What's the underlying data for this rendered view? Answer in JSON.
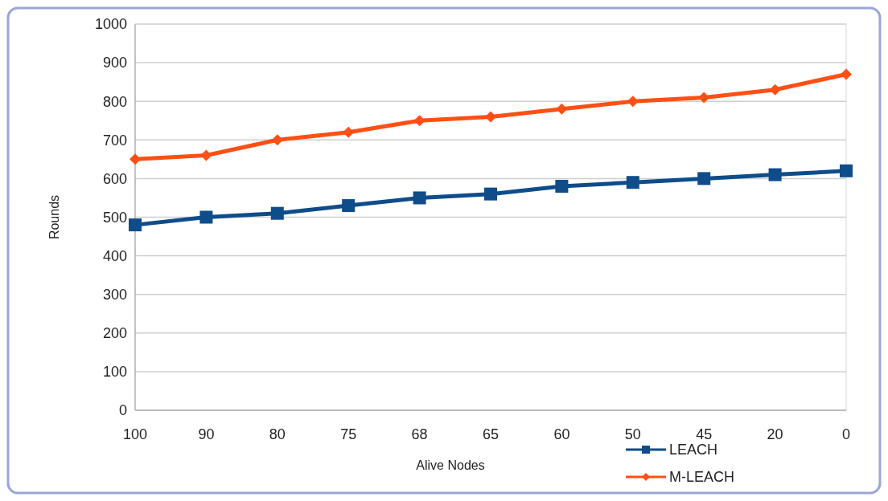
{
  "chart_data": {
    "type": "line",
    "xlabel": "Alive Nodes",
    "ylabel": "Rounds",
    "categories": [
      "100",
      "90",
      "80",
      "75",
      "68",
      "65",
      "60",
      "50",
      "45",
      "20",
      "0"
    ],
    "series": [
      {
        "name": "LEACH",
        "color": "#0f4c8a",
        "marker": "square",
        "values": [
          480,
          500,
          510,
          530,
          550,
          560,
          580,
          590,
          600,
          610,
          620
        ]
      },
      {
        "name": "M-LEACH",
        "color": "#ff4f14",
        "marker": "diamond",
        "values": [
          650,
          660,
          700,
          720,
          750,
          760,
          780,
          800,
          810,
          830,
          870
        ]
      }
    ],
    "ylim": [
      0,
      1000
    ],
    "yticks": [
      0,
      100,
      200,
      300,
      400,
      500,
      600,
      700,
      800,
      900,
      1000
    ],
    "grid": "y",
    "legend": "bottom right"
  }
}
